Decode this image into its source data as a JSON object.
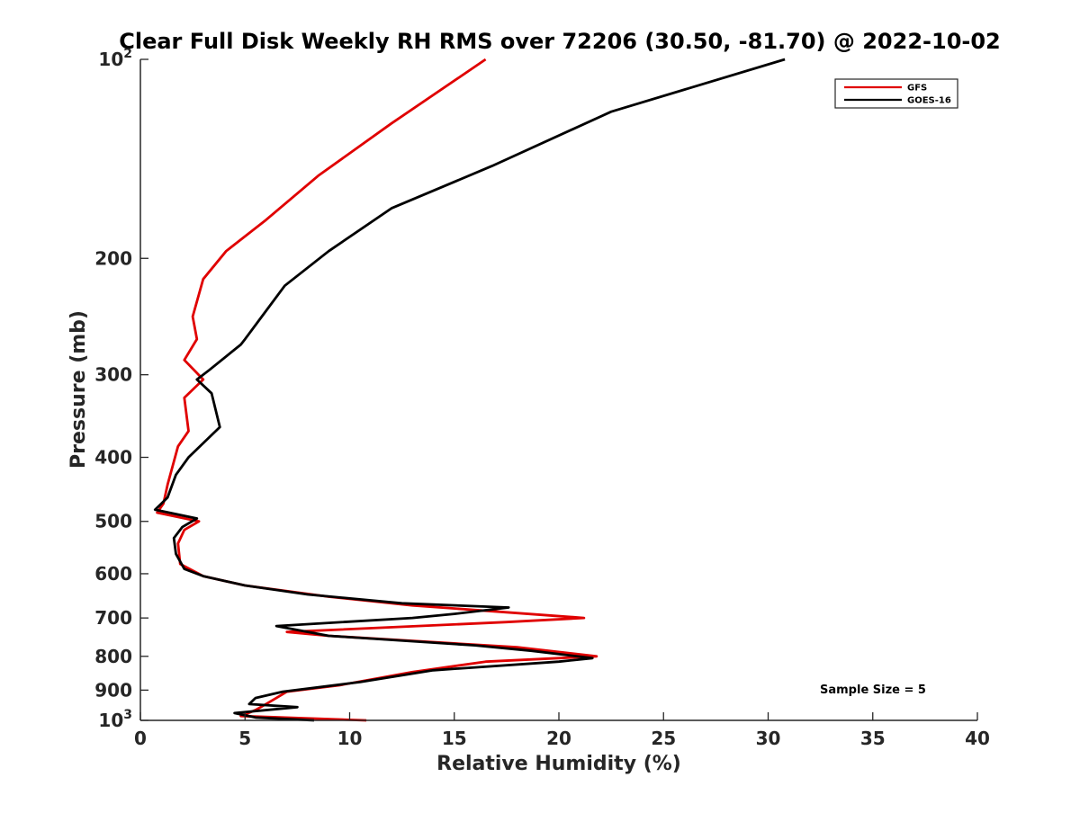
{
  "chart_data": {
    "type": "line",
    "title": "Clear Full Disk Weekly RH RMS over 72206 (30.50, -81.70) @ 2022-10-02",
    "xlabel": "Relative Humidity (%)",
    "ylabel": "Pressure (mb)",
    "xlim": [
      0,
      40
    ],
    "ylim": [
      100,
      1000
    ],
    "y_scale": "log",
    "y_reversed": true,
    "x_ticks": [
      0,
      5,
      10,
      15,
      20,
      25,
      30,
      35,
      40
    ],
    "x_tick_labels": [
      "0",
      "5",
      "10",
      "15",
      "20",
      "25",
      "30",
      "35",
      "40"
    ],
    "y_ticks": [
      100,
      200,
      300,
      400,
      500,
      600,
      700,
      800,
      900,
      1000
    ],
    "y_tick_labels": [
      {
        "base": "10",
        "exp": "2"
      },
      {
        "base": "200"
      },
      {
        "base": "300"
      },
      {
        "base": "400"
      },
      {
        "base": "500"
      },
      {
        "base": "600"
      },
      {
        "base": "700"
      },
      {
        "base": "800"
      },
      {
        "base": "900"
      },
      {
        "base": "10",
        "exp": "3"
      }
    ],
    "grid": false,
    "legend_position": "top-right",
    "annotation": "Sample Size = 5",
    "series": [
      {
        "name": "GFS",
        "color": "#e00000",
        "points": [
          [
            16.5,
            100
          ],
          [
            12.0,
            125
          ],
          [
            8.5,
            150
          ],
          [
            6.0,
            175
          ],
          [
            4.1,
            195
          ],
          [
            3.0,
            215
          ],
          [
            2.5,
            245
          ],
          [
            2.7,
            265
          ],
          [
            2.1,
            285
          ],
          [
            3.0,
            305
          ],
          [
            2.1,
            325
          ],
          [
            2.3,
            365
          ],
          [
            1.8,
            385
          ],
          [
            1.3,
            440
          ],
          [
            1.1,
            470
          ],
          [
            0.8,
            485
          ],
          [
            2.8,
            500
          ],
          [
            2.1,
            515
          ],
          [
            1.8,
            540
          ],
          [
            1.9,
            580
          ],
          [
            3.0,
            605
          ],
          [
            5.0,
            625
          ],
          [
            9.0,
            650
          ],
          [
            13.0,
            670
          ],
          [
            21.2,
            700
          ],
          [
            17.5,
            710
          ],
          [
            7.0,
            735
          ],
          [
            9.0,
            745
          ],
          [
            18.0,
            775
          ],
          [
            21.8,
            800
          ],
          [
            16.5,
            815
          ],
          [
            13.0,
            845
          ],
          [
            9.5,
            885
          ],
          [
            7.0,
            905
          ],
          [
            6.5,
            925
          ],
          [
            6.0,
            945
          ],
          [
            5.5,
            965
          ],
          [
            4.8,
            985
          ],
          [
            10.8,
            1000
          ]
        ]
      },
      {
        "name": "GOES-16",
        "color": "#000000",
        "points": [
          [
            30.8,
            100
          ],
          [
            22.5,
            120
          ],
          [
            16.8,
            145
          ],
          [
            12.0,
            168
          ],
          [
            9.0,
            195
          ],
          [
            6.9,
            220
          ],
          [
            5.8,
            245
          ],
          [
            5.0,
            265
          ],
          [
            4.8,
            270
          ],
          [
            3.3,
            295
          ],
          [
            2.7,
            305
          ],
          [
            3.4,
            320
          ],
          [
            3.8,
            360
          ],
          [
            2.3,
            400
          ],
          [
            1.7,
            425
          ],
          [
            1.3,
            460
          ],
          [
            1.0,
            470
          ],
          [
            0.7,
            480
          ],
          [
            2.7,
            495
          ],
          [
            2.0,
            510
          ],
          [
            1.6,
            530
          ],
          [
            1.7,
            560
          ],
          [
            2.1,
            590
          ],
          [
            3.0,
            605
          ],
          [
            5.0,
            625
          ],
          [
            8.0,
            645
          ],
          [
            12.5,
            665
          ],
          [
            17.6,
            675
          ],
          [
            15.0,
            690
          ],
          [
            13.0,
            700
          ],
          [
            6.5,
            720
          ],
          [
            7.5,
            730
          ],
          [
            9.0,
            745
          ],
          [
            16.0,
            770
          ],
          [
            18.7,
            785
          ],
          [
            21.6,
            805
          ],
          [
            20.0,
            815
          ],
          [
            14.0,
            840
          ],
          [
            10.5,
            875
          ],
          [
            6.8,
            905
          ],
          [
            5.5,
            925
          ],
          [
            5.2,
            945
          ],
          [
            7.5,
            955
          ],
          [
            4.5,
            975
          ],
          [
            5.5,
            990
          ],
          [
            8.3,
            1000
          ]
        ]
      }
    ]
  }
}
